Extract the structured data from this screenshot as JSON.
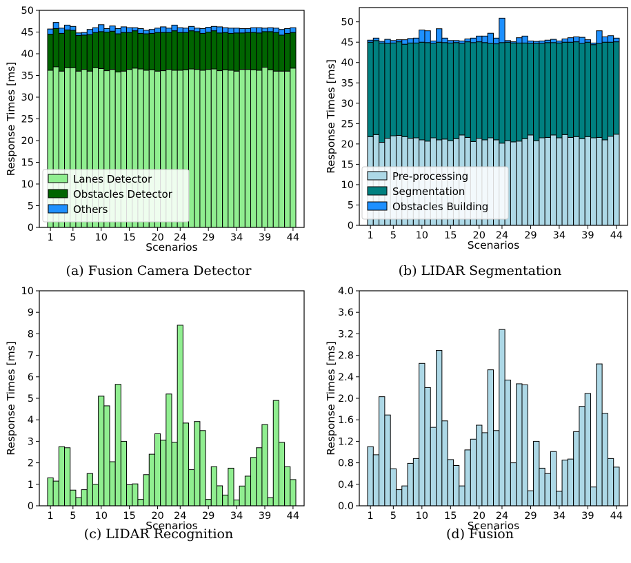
{
  "chart_data": [
    {
      "type": "bar",
      "stacked": true,
      "caption": "(a) Fusion Camera Detector",
      "xlabel": "Scenarios",
      "ylabel": "Response Times [ms]",
      "ylim": [
        0,
        50
      ],
      "yticks": [
        0,
        5,
        10,
        15,
        20,
        25,
        30,
        35,
        40,
        45,
        50
      ],
      "yticklabels": [
        "0",
        "5",
        "10",
        "15",
        "20",
        "25",
        "30",
        "35",
        "40",
        "45",
        "50"
      ],
      "xtick_scenarios": [
        1,
        5,
        10,
        15,
        20,
        24,
        29,
        34,
        39,
        44
      ],
      "legend_position": "lower-left",
      "categories": [
        1,
        2,
        3,
        4,
        5,
        6,
        7,
        8,
        9,
        10,
        11,
        12,
        13,
        14,
        15,
        16,
        17,
        18,
        19,
        20,
        21,
        22,
        23,
        24,
        25,
        26,
        27,
        28,
        29,
        30,
        31,
        32,
        33,
        34,
        35,
        36,
        37,
        38,
        39,
        40,
        41,
        42,
        43,
        44
      ],
      "series": [
        {
          "name": "Lanes Detector",
          "color": "#90ee90",
          "values": [
            36.2,
            37,
            36,
            36.8,
            36.8,
            36,
            36.4,
            36,
            36.8,
            36.6,
            36.1,
            36.4,
            35.8,
            36,
            36.4,
            36.7,
            36.5,
            36.2,
            36.3,
            36,
            36.1,
            36.4,
            36.2,
            36.2,
            36.3,
            36.5,
            36.4,
            36.2,
            36.4,
            36.5,
            36.1,
            36.3,
            36.2,
            36,
            36.4,
            36.4,
            36.3,
            36.2,
            36.9,
            36.3,
            36,
            36,
            36,
            36.7
          ]
        },
        {
          "name": "Obstacles Detector",
          "color": "#006400",
          "values": [
            8.3,
            8.8,
            8.7,
            8.7,
            8.6,
            8.2,
            7.9,
            8.4,
            8.1,
            8.5,
            8.9,
            8.8,
            8.8,
            8.9,
            8.5,
            8.6,
            8.2,
            8.4,
            8.4,
            8.9,
            8.8,
            8.5,
            9.1,
            8.7,
            8.6,
            8.8,
            8.7,
            8.5,
            8.6,
            8.8,
            8.7,
            8.6,
            8.5,
            8.8,
            8.4,
            8.5,
            8.6,
            8.6,
            8.2,
            8.8,
            8.9,
            8.3,
            8.7,
            8.2
          ]
        },
        {
          "name": "Others",
          "color": "#1e90ff",
          "values": [
            1.2,
            1.4,
            1.2,
            1.1,
            0.9,
            0.6,
            0.6,
            1.2,
            1.1,
            1.6,
            0.8,
            1.2,
            1.2,
            1.3,
            1.1,
            0.7,
            1.1,
            0.8,
            0.9,
            1,
            1.3,
            1,
            1.3,
            1.1,
            1,
            1,
            0.8,
            1.1,
            1.1,
            1,
            1.4,
            1.1,
            1.2,
            1.1,
            1,
            0.9,
            1.1,
            1.2,
            0.8,
            0.9,
            1,
            1.3,
            1.1,
            1.1
          ]
        }
      ]
    },
    {
      "type": "bar",
      "stacked": true,
      "caption": "(b) LIDAR Segmentation",
      "xlabel": "Scenarios",
      "ylabel": "Response Times [ms]",
      "ylim": [
        0,
        53.5
      ],
      "yticks": [
        0,
        5,
        10,
        15,
        20,
        25,
        30,
        35,
        40,
        45,
        50
      ],
      "yticklabels": [
        "0",
        "5",
        "10",
        "15",
        "20",
        "25",
        "30",
        "35",
        "40",
        "45",
        "50"
      ],
      "xtick_scenarios": [
        1,
        5,
        10,
        15,
        20,
        24,
        29,
        34,
        39,
        44
      ],
      "legend_position": "lower-left",
      "categories": [
        1,
        2,
        3,
        4,
        5,
        6,
        7,
        8,
        9,
        10,
        11,
        12,
        13,
        14,
        15,
        16,
        17,
        18,
        19,
        20,
        21,
        22,
        23,
        24,
        25,
        26,
        27,
        28,
        29,
        30,
        31,
        32,
        33,
        34,
        35,
        36,
        37,
        38,
        39,
        40,
        41,
        42,
        43,
        44
      ],
      "series": [
        {
          "name": "Pre-processing",
          "color": "#add8e6",
          "values": [
            21.8,
            22.3,
            20.4,
            21.4,
            22,
            22.1,
            21.8,
            21.4,
            21.5,
            21,
            20.7,
            21.5,
            21,
            21.2,
            20.8,
            21.3,
            22.2,
            21.6,
            20.6,
            21.4,
            21,
            21.5,
            21,
            20.2,
            20.8,
            20.5,
            20.7,
            21.3,
            22.2,
            20.8,
            21.5,
            21.6,
            22.2,
            21.5,
            22.3,
            21.6,
            21.8,
            21.3,
            21.8,
            21.5,
            21.6,
            21,
            21.9,
            22.4
          ]
        },
        {
          "name": "Segmentation",
          "color": "#008080",
          "values": [
            23.2,
            23.1,
            24.4,
            23.3,
            22.8,
            23,
            22.7,
            23.4,
            23.3,
            24,
            24.2,
            23.2,
            24,
            23.7,
            24,
            23.6,
            22.5,
            23.5,
            24.3,
            23.7,
            23.9,
            23.2,
            23.6,
            24.7,
            24.2,
            24.3,
            24.1,
            23.5,
            22.5,
            23.9,
            23.2,
            23.3,
            22.7,
            23.3,
            22.7,
            23.4,
            23.3,
            23.4,
            23.2,
            22.9,
            23.1,
            24,
            23.1,
            22.7
          ]
        },
        {
          "name": "Obstacles Building",
          "color": "#1e90ff",
          "values": [
            0.5,
            0.6,
            0.4,
            1,
            0.6,
            0.5,
            1.1,
            1.1,
            1.2,
            3,
            2.9,
            0.6,
            3.3,
            1.1,
            0.6,
            0.5,
            0.6,
            0.7,
            1.1,
            1.4,
            1.6,
            2.5,
            1.4,
            6,
            0.4,
            0.3,
            1.3,
            1.7,
            0.6,
            0.5,
            0.6,
            0.6,
            0.8,
            0.5,
            0.8,
            1.1,
            1.2,
            1.5,
            0.6,
            0.4,
            3.1,
            1.3,
            1.6,
            0.9
          ]
        }
      ]
    },
    {
      "type": "bar",
      "caption": "(c) LIDAR Recognition",
      "xlabel": "Scenarios",
      "ylabel": "Response Times [ms]",
      "ylim": [
        0,
        10
      ],
      "yticks": [
        0,
        1,
        2,
        3,
        4,
        5,
        6,
        7,
        8,
        9,
        10
      ],
      "yticklabels": [
        "0",
        "1",
        "2",
        "3",
        "4",
        "5",
        "6",
        "7",
        "8",
        "9",
        "10"
      ],
      "xtick_scenarios": [
        1,
        5,
        10,
        15,
        20,
        24,
        29,
        34,
        39,
        44
      ],
      "categories": [
        1,
        2,
        3,
        4,
        5,
        6,
        7,
        8,
        9,
        10,
        11,
        12,
        13,
        14,
        15,
        16,
        17,
        18,
        19,
        20,
        21,
        22,
        23,
        24,
        25,
        26,
        27,
        28,
        29,
        30,
        31,
        32,
        33,
        34,
        35,
        36,
        37,
        38,
        39,
        40,
        41,
        42,
        43,
        44
      ],
      "series": [
        {
          "color": "#90ee90",
          "values": [
            1.3,
            1.15,
            2.75,
            2.7,
            0.73,
            0.38,
            0.75,
            1.5,
            1,
            5.1,
            4.65,
            2.05,
            5.65,
            3,
            0.98,
            1.02,
            0.3,
            1.45,
            2.4,
            3.35,
            3.05,
            5.2,
            2.95,
            8.4,
            3.85,
            1.68,
            3.92,
            3.5,
            0.3,
            1.82,
            0.93,
            0.5,
            1.75,
            0.27,
            0.92,
            1.38,
            2.25,
            2.7,
            3.78,
            0.38,
            4.9,
            2.95,
            1.82,
            1.22
          ]
        }
      ]
    },
    {
      "type": "bar",
      "caption": "(d) Fusion",
      "xlabel": "Scenarios",
      "ylabel": "Response Times [ms]",
      "ylim": [
        0,
        4.0
      ],
      "yticks": [
        0,
        0.4,
        0.8,
        1.2,
        1.6,
        2.0,
        2.4,
        2.8,
        3.2,
        3.6,
        4.0
      ],
      "yticklabels": [
        "0.0",
        "0.4",
        "0.8",
        "1.2",
        "1.6",
        "2.0",
        "2.4",
        "2.8",
        "3.2",
        "3.6",
        "4.0"
      ],
      "xtick_scenarios": [
        1,
        5,
        10,
        15,
        20,
        24,
        29,
        34,
        39,
        44
      ],
      "categories": [
        1,
        2,
        3,
        4,
        5,
        6,
        7,
        8,
        9,
        10,
        11,
        12,
        13,
        14,
        15,
        16,
        17,
        18,
        19,
        20,
        21,
        22,
        23,
        24,
        25,
        26,
        27,
        28,
        29,
        30,
        31,
        32,
        33,
        34,
        35,
        36,
        37,
        38,
        39,
        40,
        41,
        42,
        43,
        44
      ],
      "series": [
        {
          "color": "#add8e6",
          "values": [
            1.1,
            0.95,
            2.03,
            1.69,
            0.69,
            0.3,
            0.37,
            0.79,
            0.88,
            2.65,
            2.2,
            1.46,
            2.89,
            1.58,
            0.86,
            0.75,
            0.37,
            1.04,
            1.24,
            1.5,
            1.36,
            2.53,
            1.4,
            3.28,
            2.34,
            0.8,
            2.27,
            2.25,
            0.28,
            1.2,
            0.7,
            0.6,
            1.01,
            0.27,
            0.85,
            0.87,
            1.38,
            1.85,
            2.09,
            0.35,
            2.64,
            1.72,
            0.88,
            0.72
          ]
        }
      ]
    }
  ]
}
